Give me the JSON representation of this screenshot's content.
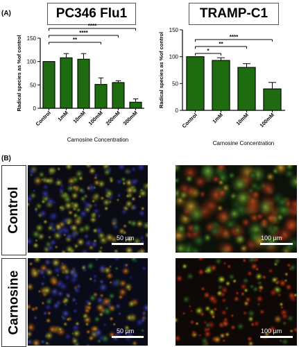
{
  "panel_a_label": "(A)",
  "panel_b_label": "(B)",
  "chart_data": [
    {
      "type": "bar",
      "title": "PC346 Flu1",
      "xlabel": "Carnosine Concentration",
      "ylabel": "Radical species as %of control",
      "categories": [
        "Control",
        "1mM",
        "10mM",
        "100mM",
        "200mM",
        "300mM"
      ],
      "values": [
        100,
        108,
        105,
        51,
        55,
        13
      ],
      "errors": [
        0,
        9,
        12,
        14,
        4,
        7
      ],
      "ylim": [
        0,
        150
      ],
      "yticks": [
        0,
        50,
        100,
        150
      ],
      "bar_color": "#1f6b10",
      "significance": [
        {
          "label": "****",
          "from": "Control",
          "to": "300mM"
        },
        {
          "label": "****",
          "from": "Control",
          "to": "200mM"
        },
        {
          "label": "**",
          "from": "Control",
          "to": "100mM"
        }
      ]
    },
    {
      "type": "bar",
      "title": "TRAMP-C1",
      "xlabel": "Carnosine Concentration",
      "ylabel": "Radical species as %of control",
      "categories": [
        "Control",
        "1mM",
        "10mM",
        "100mM"
      ],
      "values": [
        100,
        93,
        80,
        40
      ],
      "errors": [
        0,
        5,
        7,
        12
      ],
      "ylim": [
        0,
        150
      ],
      "yticks": [
        0,
        50,
        100,
        150
      ],
      "bar_color": "#1f6b10",
      "significance": [
        {
          "label": "****",
          "from": "Control",
          "to": "100mM"
        },
        {
          "label": "**",
          "from": "Control",
          "to": "10mM"
        },
        {
          "label": "*",
          "from": "Control",
          "to": "1mM"
        }
      ]
    }
  ],
  "images": {
    "row_labels": [
      "Control",
      "Carnosine"
    ],
    "scale_bars": [
      "50 µm",
      "100 µm",
      "50 µm",
      "100 µm"
    ]
  }
}
